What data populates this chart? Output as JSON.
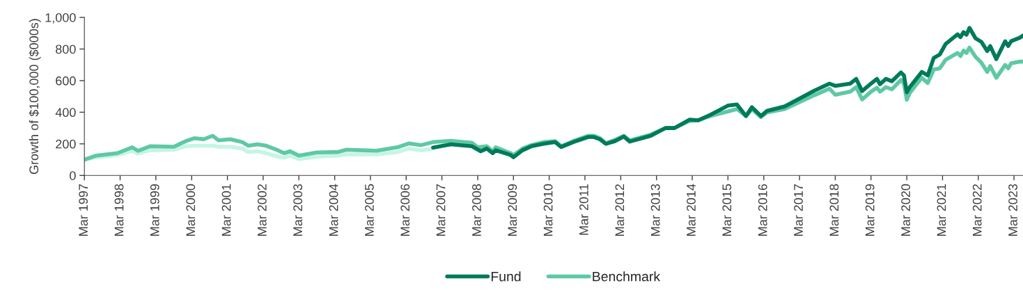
{
  "chart_data": {
    "type": "line",
    "ylabel": "Growth of $100,000 ($000s)",
    "series": [
      {
        "name": "Fund",
        "color": "#007a5a",
        "x": [
          "2006-12",
          "2007-06",
          "2007-09",
          "2008-01",
          "2008-04",
          "2008-06",
          "2008-08",
          "2008-09",
          "2009-02",
          "2009-03",
          "2009-06",
          "2009-09",
          "2010-01",
          "2010-05",
          "2010-07",
          "2010-11",
          "2011-04",
          "2011-06",
          "2011-08",
          "2011-10",
          "2012-01",
          "2012-04",
          "2012-06",
          "2013-01",
          "2013-06",
          "2013-09",
          "2014-02",
          "2014-05",
          "2014-09",
          "2015-03",
          "2015-06",
          "2015-09",
          "2015-11",
          "2016-02",
          "2016-04",
          "2016-10",
          "2017-03",
          "2017-08",
          "2018-01",
          "2018-03",
          "2018-08",
          "2018-10",
          "2018-12",
          "2019-03",
          "2019-05",
          "2019-06",
          "2019-08",
          "2019-10",
          "2020-01",
          "2020-02",
          "2020-03",
          "2020-04",
          "2020-08",
          "2020-10",
          "2020-12",
          "2021-02",
          "2021-04",
          "2021-08",
          "2021-09",
          "2021-10",
          "2021-11",
          "2021-12",
          "2022-02",
          "2022-04",
          "2022-06",
          "2022-07",
          "2022-09",
          "2022-12",
          "2023-01",
          "2023-02",
          "2023-05",
          "2023-06"
        ],
        "values": [
          176,
          197,
          192,
          185,
          153,
          170,
          141,
          159,
          129,
          115,
          159,
          185,
          200,
          211,
          180,
          211,
          243,
          243,
          229,
          200,
          217,
          246,
          214,
          251,
          300,
          300,
          353,
          349,
          383,
          442,
          449,
          376,
          432,
          376,
          408,
          437,
          486,
          537,
          581,
          567,
          581,
          611,
          534,
          581,
          611,
          577,
          611,
          596,
          652,
          633,
          526,
          559,
          655,
          633,
          743,
          765,
          831,
          893,
          875,
          907,
          890,
          934,
          868,
          846,
          787,
          819,
          736,
          849,
          819,
          850,
          872,
          885
        ]
      },
      {
        "name": "Benchmark",
        "color": "#5fc8a5",
        "x": [
          "1997-03",
          "1997-07",
          "1998-02",
          "1998-07",
          "1998-09",
          "1999-01",
          "1999-09",
          "2000-01",
          "2000-04",
          "2000-07",
          "2000-10",
          "2000-12",
          "2001-04",
          "2001-08",
          "2001-10",
          "2002-01",
          "2002-04",
          "2002-08",
          "2002-10",
          "2002-12",
          "2003-03",
          "2003-09",
          "2004-04",
          "2004-07",
          "2005-05",
          "2005-12",
          "2006-04",
          "2006-08",
          "2006-12",
          "2007-06",
          "2007-09",
          "2008-01",
          "2008-03",
          "2008-06",
          "2008-08",
          "2008-09",
          "2009-02",
          "2009-03",
          "2009-06",
          "2009-09",
          "2010-01",
          "2010-05",
          "2010-07",
          "2010-11",
          "2011-04",
          "2011-06",
          "2011-08",
          "2011-10",
          "2012-01",
          "2012-04",
          "2012-06",
          "2013-01",
          "2013-06",
          "2013-09",
          "2014-02",
          "2014-05",
          "2014-09",
          "2015-03",
          "2015-06",
          "2015-09",
          "2015-11",
          "2016-02",
          "2016-04",
          "2016-10",
          "2017-03",
          "2017-08",
          "2018-01",
          "2018-03",
          "2018-08",
          "2018-10",
          "2018-12",
          "2019-03",
          "2019-05",
          "2019-06",
          "2019-08",
          "2019-10",
          "2020-01",
          "2020-02",
          "2020-03",
          "2020-04",
          "2020-08",
          "2020-10",
          "2020-12",
          "2021-02",
          "2021-04",
          "2021-08",
          "2021-09",
          "2021-10",
          "2021-11",
          "2021-12",
          "2022-02",
          "2022-04",
          "2022-06",
          "2022-07",
          "2022-09",
          "2022-12",
          "2023-01",
          "2023-02",
          "2023-05",
          "2023-06"
        ],
        "values": [
          100,
          126,
          141,
          178,
          156,
          185,
          182,
          217,
          236,
          229,
          251,
          222,
          229,
          211,
          188,
          197,
          188,
          159,
          141,
          153,
          126,
          145,
          148,
          163,
          156,
          178,
          203,
          192,
          211,
          219,
          214,
          207,
          178,
          185,
          153,
          178,
          141,
          129,
          170,
          192,
          211,
          217,
          185,
          217,
          251,
          251,
          236,
          203,
          225,
          251,
          222,
          258,
          300,
          300,
          344,
          349,
          376,
          405,
          420,
          376,
          420,
          369,
          398,
          420,
          464,
          508,
          549,
          511,
          530,
          559,
          481,
          530,
          555,
          530,
          559,
          545,
          604,
          581,
          479,
          523,
          618,
          585,
          670,
          678,
          731,
          775,
          755,
          790,
          775,
          809,
          750,
          714,
          655,
          692,
          618,
          699,
          678,
          710,
          721,
          720
        ]
      },
      {
        "color": "#c5f5e5",
        "x": [
          "1997-03",
          "1997-07",
          "1998-02",
          "1998-07",
          "1998-09",
          "1999-01",
          "1999-09",
          "2000-01",
          "2000-04",
          "2000-10",
          "2000-12",
          "2001-04",
          "2001-08",
          "2001-10",
          "2002-01",
          "2002-04",
          "2002-08",
          "2002-10",
          "2002-12",
          "2003-03",
          "2003-09",
          "2004-04",
          "2004-07",
          "2005-05",
          "2005-12",
          "2006-04",
          "2006-08",
          "2006-12"
        ],
        "values": [
          100,
          115,
          129,
          156,
          138,
          159,
          163,
          185,
          188,
          188,
          182,
          182,
          170,
          148,
          153,
          141,
          119,
          112,
          126,
          104,
          119,
          126,
          133,
          133,
          148,
          170,
          159,
          170
        ]
      }
    ],
    "xlim": [
      "1997-03",
      "2023-06"
    ],
    "xticks": [
      {
        "value": "1997-03",
        "label": "Mar 1997"
      },
      {
        "value": "1998-03",
        "label": "Mar 1998"
      },
      {
        "value": "1999-03",
        "label": "Mar 1999"
      },
      {
        "value": "2000-03",
        "label": "Mar 2000"
      },
      {
        "value": "2001-03",
        "label": "Mar 2001"
      },
      {
        "value": "2002-03",
        "label": "Mar 2002"
      },
      {
        "value": "2003-03",
        "label": "Mar 2003"
      },
      {
        "value": "2004-03",
        "label": "Mar 2004"
      },
      {
        "value": "2005-03",
        "label": "Mar 2005"
      },
      {
        "value": "2006-03",
        "label": "Mar 2006"
      },
      {
        "value": "2007-03",
        "label": "Mar 2007"
      },
      {
        "value": "2008-03",
        "label": "Mar 2008"
      },
      {
        "value": "2009-03",
        "label": "Mar 2009"
      },
      {
        "value": "2010-03",
        "label": "Mar 2010"
      },
      {
        "value": "2011-03",
        "label": "Mar 2011"
      },
      {
        "value": "2012-03",
        "label": "Mar 2012"
      },
      {
        "value": "2013-03",
        "label": "Mar 2013"
      },
      {
        "value": "2014-03",
        "label": "Mar 2014"
      },
      {
        "value": "2015-03",
        "label": "Mar 2015"
      },
      {
        "value": "2016-03",
        "label": "Mar 2016"
      },
      {
        "value": "2017-03",
        "label": "Mar 2017"
      },
      {
        "value": "2018-03",
        "label": "Mar 2018"
      },
      {
        "value": "2019-03",
        "label": "Mar 2019"
      },
      {
        "value": "2020-03",
        "label": "Mar 2020"
      },
      {
        "value": "2021-03",
        "label": "Mar 2021"
      },
      {
        "value": "2022-03",
        "label": "Mar 2022"
      },
      {
        "value": "2023-03",
        "label": "Mar 2023"
      }
    ],
    "ylim": [
      0,
      1000
    ],
    "yticks": [
      0,
      200,
      400,
      600,
      800,
      {
        "value": 1000,
        "label": "1,000"
      }
    ],
    "grid": false,
    "legend": "bottom",
    "marker": "none",
    "line_style": "solid"
  }
}
